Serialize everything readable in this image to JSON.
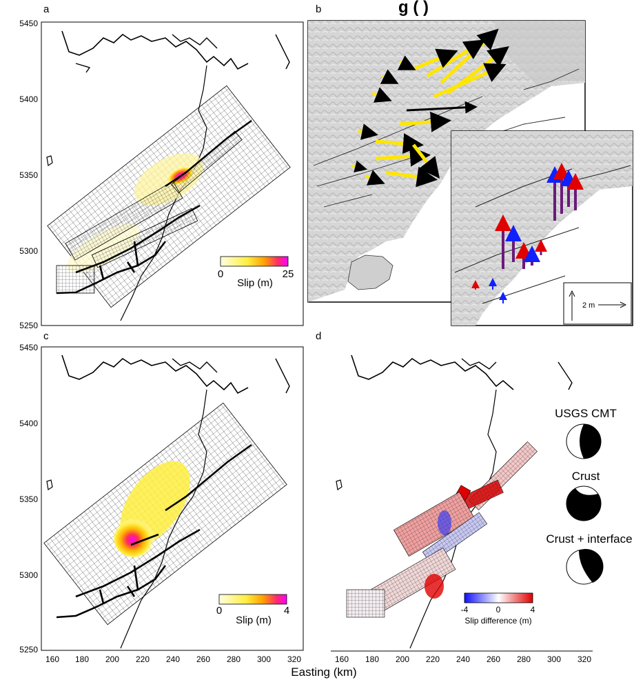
{
  "panel_labels": [
    "a",
    "b",
    "c",
    "d"
  ],
  "header_fragment": "g (    )",
  "axes": {
    "xlabel": "Easting (km)",
    "x_ticks": [
      "160",
      "180",
      "200",
      "220",
      "240",
      "260",
      "280",
      "300",
      "320"
    ],
    "y_ticks": [
      "5250",
      "5300",
      "5350",
      "5400",
      "5450"
    ]
  },
  "colorbar_a": {
    "min": "0",
    "max": "25",
    "label": "Slip (m)"
  },
  "colorbar_c": {
    "min": "0",
    "max": "4",
    "label": "Slip (m)"
  },
  "colorbar_d": {
    "min": "-4",
    "mid": "0",
    "max": "4",
    "label": "Slip difference (m)"
  },
  "scale_label": "2 m",
  "mechanisms": [
    "USGS CMT",
    "Crust",
    "Crust + interface"
  ],
  "colors": {
    "slip_low": "#ffffe0",
    "slip_mid": "#ffd400",
    "slip_hot": "#ff2a6a",
    "slip_max": "#ff00ff",
    "diff_neg": "#1010ff",
    "diff_pos": "#e00000",
    "arrow_yellow": "#ffe600",
    "arrow_purple": "#6a1a7a"
  }
}
